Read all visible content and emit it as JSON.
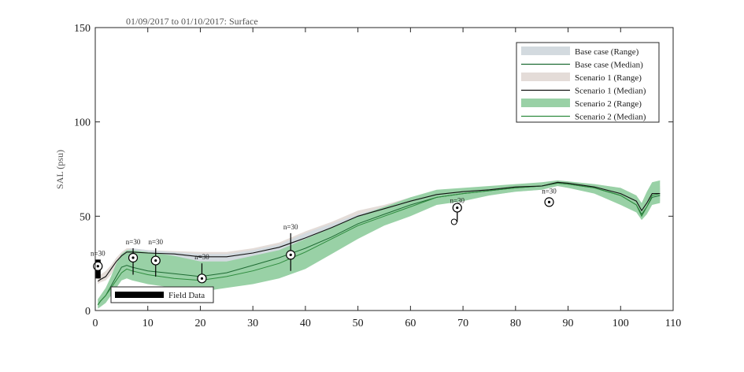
{
  "chart_data": {
    "type": "line",
    "title": "01/09/2017 to 01/10/2017: Surface",
    "ylabel": "SAL (psu)",
    "xlabel": "",
    "xlim": [
      0,
      110
    ],
    "ylim": [
      0,
      150
    ],
    "x_ticks": [
      0,
      10,
      20,
      30,
      40,
      50,
      60,
      70,
      80,
      90,
      100,
      110
    ],
    "y_ticks": [
      0,
      50,
      100,
      150
    ],
    "grid": false,
    "legend_position": "top-right",
    "colors": {
      "base_range": "#d3dadf",
      "base_median": "#1e6b33",
      "s1_range": "#e4dcd8",
      "s1_median": "#111111",
      "s2_range": "#99d1a6",
      "s2_median": "#2e8b3e",
      "field": "#000000"
    },
    "legend": [
      {
        "label": "Base case (Range)",
        "kind": "band",
        "color": "#d3dadf"
      },
      {
        "label": "Base case (Median)",
        "kind": "line",
        "color": "#1e6b33"
      },
      {
        "label": "Scenario 1 (Range)",
        "kind": "band",
        "color": "#e4dcd8"
      },
      {
        "label": "Scenario 1 (Median)",
        "kind": "line",
        "color": "#111111"
      },
      {
        "label": "Scenario 2 (Range)",
        "kind": "band",
        "color": "#99d1a6"
      },
      {
        "label": "Scenario 2 (Median)",
        "kind": "line",
        "color": "#2e8b3e"
      }
    ],
    "field_legend_label": "Field Data",
    "scenario1": {
      "x": [
        0.5,
        1,
        2,
        3,
        4,
        5,
        6,
        7,
        10,
        15,
        20,
        25,
        30,
        35,
        40,
        45,
        50,
        55,
        60,
        65,
        70,
        75,
        80,
        85,
        88,
        90,
        95,
        100,
        103,
        104,
        105,
        106,
        107.5
      ],
      "lower": [
        14,
        15,
        16,
        19,
        24,
        27,
        29,
        29.5,
        29,
        28.5,
        27.5,
        27.5,
        29,
        32,
        36,
        42,
        48,
        52,
        55,
        59,
        61,
        63,
        64,
        65,
        67,
        66,
        64,
        59,
        55,
        51,
        54,
        59,
        60
      ],
      "upper": [
        18,
        19,
        21,
        24,
        28,
        31,
        33,
        33,
        32,
        31.5,
        31,
        31,
        33,
        36,
        42,
        47,
        53,
        56,
        60,
        63,
        64,
        65,
        66,
        67,
        68.5,
        68,
        67,
        65,
        61,
        55,
        60,
        65,
        66
      ],
      "median": [
        15.5,
        16.5,
        18,
        22,
        26,
        29,
        31,
        31,
        30.5,
        30,
        28.5,
        28.5,
        30.5,
        33.5,
        38.5,
        44,
        50,
        54,
        58,
        61.5,
        63,
        64,
        65.5,
        66,
        68,
        67.5,
        65.5,
        62,
        58,
        53,
        57,
        62,
        62
      ]
    },
    "base_case": {
      "x": [
        0.5,
        1,
        2,
        3,
        4,
        5,
        6,
        7,
        10,
        15,
        20,
        25,
        30,
        35,
        40,
        45,
        50,
        55,
        60,
        65,
        70,
        75,
        80,
        85,
        88,
        90,
        95,
        100,
        103,
        104,
        105,
        106,
        107.5
      ],
      "lower": [
        2,
        3,
        5,
        10,
        16,
        21,
        23,
        22,
        20,
        17,
        15,
        17,
        21,
        25,
        29,
        35,
        42,
        48,
        52,
        57,
        59,
        61,
        63,
        64,
        66,
        65,
        63,
        57,
        53,
        49,
        52,
        57,
        58
      ],
      "upper": [
        6,
        8,
        12,
        18,
        25,
        30,
        32,
        33,
        32,
        31,
        30,
        30,
        32,
        35,
        41,
        46,
        51,
        55,
        60,
        63,
        64,
        65,
        66,
        67,
        68.5,
        68,
        67,
        64,
        60,
        55,
        60,
        64,
        65
      ],
      "median": [
        3,
        5,
        8,
        13,
        18,
        23,
        24,
        23,
        21,
        19.5,
        18,
        20,
        24,
        28,
        33,
        39,
        46,
        51,
        56,
        60,
        62,
        63.5,
        65,
        66,
        67.5,
        67,
        65,
        61,
        56,
        51,
        55,
        60,
        61
      ]
    },
    "scenario2": {
      "x": [
        0.5,
        1,
        2,
        3,
        4,
        5,
        6,
        7,
        10,
        15,
        20,
        25,
        30,
        35,
        40,
        45,
        50,
        55,
        60,
        65,
        70,
        75,
        80,
        85,
        88,
        90,
        95,
        100,
        103,
        104,
        105,
        106,
        107.5
      ],
      "lower": [
        1,
        2,
        4,
        8,
        12,
        16,
        17,
        16,
        14,
        12,
        10,
        12,
        14,
        17,
        22,
        30,
        38,
        45,
        50,
        56,
        58,
        61,
        63,
        64,
        66,
        65,
        62,
        56,
        52,
        48,
        51,
        56,
        57
      ],
      "upper": [
        6,
        8,
        12,
        18,
        25,
        30,
        32,
        32,
        31,
        29,
        26,
        26,
        29,
        32,
        38,
        44,
        50,
        55,
        60,
        64,
        65,
        66,
        67,
        68,
        69,
        68.5,
        67,
        65,
        61,
        57,
        63,
        68,
        69
      ],
      "median": [
        3,
        5,
        8,
        12,
        16,
        20,
        22,
        21,
        19,
        17,
        16,
        18,
        21,
        25,
        31,
        38,
        45,
        50,
        55,
        60,
        62,
        63.5,
        65,
        66,
        67.5,
        67,
        65,
        61,
        56,
        50,
        55,
        61,
        62
      ]
    },
    "field_data": [
      {
        "x": 0.5,
        "median": 23.5,
        "low": 17,
        "high": 27,
        "n_label": "n=30",
        "extra": null
      },
      {
        "x": 7.2,
        "median": 28,
        "low": 19,
        "high": 33,
        "n_label": "n=30",
        "extra": null
      },
      {
        "x": 11.5,
        "median": 26.5,
        "low": 18,
        "high": 33,
        "n_label": "n=30",
        "extra": null
      },
      {
        "x": 20.3,
        "median": 17,
        "low": 15,
        "high": 25,
        "n_label": "n=30",
        "extra": null
      },
      {
        "x": 37.2,
        "median": 29.5,
        "low": 21,
        "high": 41,
        "n_label": "n=30",
        "extra": null
      },
      {
        "x": 68.9,
        "median": 54.5,
        "low": 47,
        "high": 55,
        "n_label": "n=30",
        "extra": {
          "x": 68.3,
          "y": 47
        }
      },
      {
        "x": 86.4,
        "median": 57.5,
        "low": 57.5,
        "high": 57.5,
        "n_label": "n=30",
        "extra": null
      }
    ]
  }
}
